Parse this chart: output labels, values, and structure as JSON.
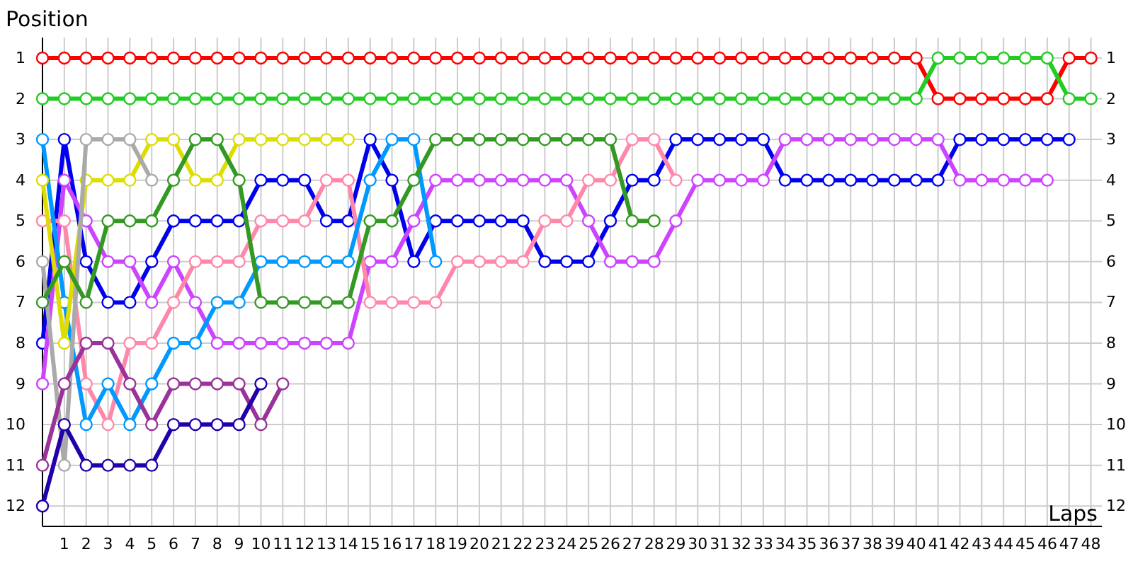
{
  "chart_data": {
    "type": "line",
    "xlabel": "Laps",
    "ylabel": "Position",
    "x": [
      0,
      1,
      2,
      3,
      4,
      5,
      6,
      7,
      8,
      9,
      10,
      11,
      12,
      13,
      14,
      15,
      16,
      17,
      18,
      19,
      20,
      21,
      22,
      23,
      24,
      25,
      26,
      27,
      28,
      29,
      30,
      31,
      32,
      33,
      34,
      35,
      36,
      37,
      38,
      39,
      40,
      41,
      42,
      43,
      44,
      45,
      46,
      47,
      48
    ],
    "xlim": [
      0,
      48.5
    ],
    "xticks": [
      1,
      2,
      3,
      4,
      5,
      6,
      7,
      8,
      9,
      10,
      11,
      12,
      13,
      14,
      15,
      16,
      17,
      18,
      19,
      20,
      21,
      22,
      23,
      24,
      25,
      26,
      27,
      28,
      29,
      30,
      31,
      32,
      33,
      34,
      35,
      36,
      37,
      38,
      39,
      40,
      41,
      42,
      43,
      44,
      45,
      46,
      47,
      48
    ],
    "ylim": [
      12.5,
      0.5
    ],
    "yticks": [
      1,
      2,
      3,
      4,
      5,
      6,
      7,
      8,
      9,
      10,
      11,
      12
    ],
    "y2lim": [
      12.5,
      0.5
    ],
    "y2ticks": [
      1,
      2,
      3,
      4,
      5,
      6,
      7,
      8,
      9,
      10,
      11,
      12
    ],
    "grid": true,
    "marker": "circle",
    "line_style": "solid",
    "series": [
      {
        "color": "#ff0000",
        "values": [
          1,
          1,
          1,
          1,
          1,
          1,
          1,
          1,
          1,
          1,
          1,
          1,
          1,
          1,
          1,
          1,
          1,
          1,
          1,
          1,
          1,
          1,
          1,
          1,
          1,
          1,
          1,
          1,
          1,
          1,
          1,
          1,
          1,
          1,
          1,
          1,
          1,
          1,
          1,
          1,
          1,
          2,
          2,
          2,
          2,
          2,
          2,
          1,
          1
        ]
      },
      {
        "color": "#22cc22",
        "values": [
          2,
          2,
          2,
          2,
          2,
          2,
          2,
          2,
          2,
          2,
          2,
          2,
          2,
          2,
          2,
          2,
          2,
          2,
          2,
          2,
          2,
          2,
          2,
          2,
          2,
          2,
          2,
          2,
          2,
          2,
          2,
          2,
          2,
          2,
          2,
          2,
          2,
          2,
          2,
          2,
          2,
          1,
          1,
          1,
          1,
          1,
          1,
          2,
          2
        ]
      },
      {
        "color": "#0000ee",
        "values": [
          8,
          3,
          6,
          7,
          7,
          6,
          5,
          5,
          5,
          5,
          4,
          4,
          4,
          5,
          5,
          3,
          4,
          6,
          5,
          5,
          5,
          5,
          5,
          6,
          6,
          6,
          5,
          4,
          4,
          3,
          3,
          3,
          3,
          3,
          4,
          4,
          4,
          4,
          4,
          4,
          4,
          4,
          3,
          3,
          3,
          3,
          3,
          3,
          null
        ]
      },
      {
        "color": "#cc44ff",
        "values": [
          9,
          4,
          5,
          6,
          6,
          7,
          6,
          7,
          8,
          8,
          8,
          8,
          8,
          8,
          8,
          6,
          6,
          5,
          4,
          4,
          4,
          4,
          4,
          4,
          4,
          5,
          6,
          6,
          6,
          5,
          4,
          4,
          4,
          4,
          3,
          3,
          3,
          3,
          3,
          3,
          3,
          3,
          4,
          4,
          4,
          4,
          4,
          null,
          null
        ]
      },
      {
        "color": "#ff88aa",
        "values": [
          5,
          5,
          9,
          10,
          8,
          8,
          7,
          6,
          6,
          6,
          5,
          5,
          5,
          4,
          4,
          7,
          7,
          7,
          7,
          6,
          6,
          6,
          6,
          5,
          5,
          4,
          4,
          3,
          3,
          4,
          null,
          null,
          null,
          null,
          null,
          null,
          null,
          null,
          null,
          null,
          null,
          null,
          null,
          null,
          null,
          null,
          null,
          null,
          null
        ]
      },
      {
        "color": "#0099ff",
        "values": [
          3,
          7,
          10,
          9,
          10,
          9,
          8,
          8,
          7,
          7,
          6,
          6,
          6,
          6,
          6,
          4,
          3,
          3,
          6,
          null,
          null,
          null,
          null,
          null,
          null,
          null,
          null,
          null,
          null,
          null,
          null,
          null,
          null,
          null,
          null,
          null,
          null,
          null,
          null,
          null,
          null,
          null,
          null,
          null,
          null,
          null,
          null,
          null,
          null
        ]
      },
      {
        "color": "#dddd00",
        "values": [
          4,
          8,
          4,
          4,
          4,
          3,
          3,
          4,
          4,
          3,
          3,
          3,
          3,
          3,
          3,
          null,
          null,
          null,
          null,
          null,
          null,
          null,
          null,
          null,
          null,
          null,
          null,
          null,
          null,
          null,
          null,
          null,
          null,
          null,
          null,
          null,
          null,
          null,
          null,
          null,
          null,
          null,
          null,
          null,
          null,
          null,
          null,
          null,
          null
        ]
      },
      {
        "color": "#aaaaaa",
        "values": [
          6,
          11,
          3,
          3,
          3,
          4,
          null,
          null,
          null,
          null,
          null,
          null,
          null,
          null,
          null,
          null,
          null,
          null,
          null,
          null,
          null,
          null,
          null,
          null,
          null,
          null,
          null,
          null,
          null,
          null,
          null,
          null,
          null,
          null,
          null,
          null,
          null,
          null,
          null,
          null,
          null,
          null,
          null,
          null,
          null,
          null,
          null,
          null,
          null
        ]
      },
      {
        "color": "#339922",
        "values": [
          7,
          6,
          7,
          5,
          5,
          5,
          4,
          3,
          3,
          4,
          7,
          7,
          7,
          7,
          7,
          5,
          5,
          4,
          3,
          3,
          3,
          3,
          3,
          3,
          3,
          3,
          3,
          5,
          5,
          null,
          null,
          null,
          null,
          null,
          null,
          null,
          null,
          null,
          null,
          null,
          null,
          null,
          null,
          null,
          null,
          null,
          null,
          null,
          null
        ]
      },
      {
        "color": "#993399",
        "values": [
          11,
          9,
          8,
          8,
          9,
          10,
          9,
          9,
          9,
          9,
          10,
          9,
          null,
          null,
          null,
          null,
          null,
          null,
          null,
          null,
          null,
          null,
          null,
          null,
          null,
          null,
          null,
          null,
          null,
          null,
          null,
          null,
          null,
          null,
          null,
          null,
          null,
          null,
          null,
          null,
          null,
          null,
          null,
          null,
          null,
          null,
          null,
          null,
          null
        ]
      },
      {
        "color": "#2200aa",
        "values": [
          12,
          10,
          11,
          11,
          11,
          11,
          10,
          10,
          10,
          10,
          9,
          null,
          null,
          null,
          null,
          null,
          null,
          null,
          null,
          null,
          null,
          null,
          null,
          null,
          null,
          null,
          null,
          null,
          null,
          null,
          null,
          null,
          null,
          null,
          null,
          null,
          null,
          null,
          null,
          null,
          null,
          null,
          null,
          null,
          null,
          null,
          null,
          null,
          null
        ]
      }
    ]
  }
}
